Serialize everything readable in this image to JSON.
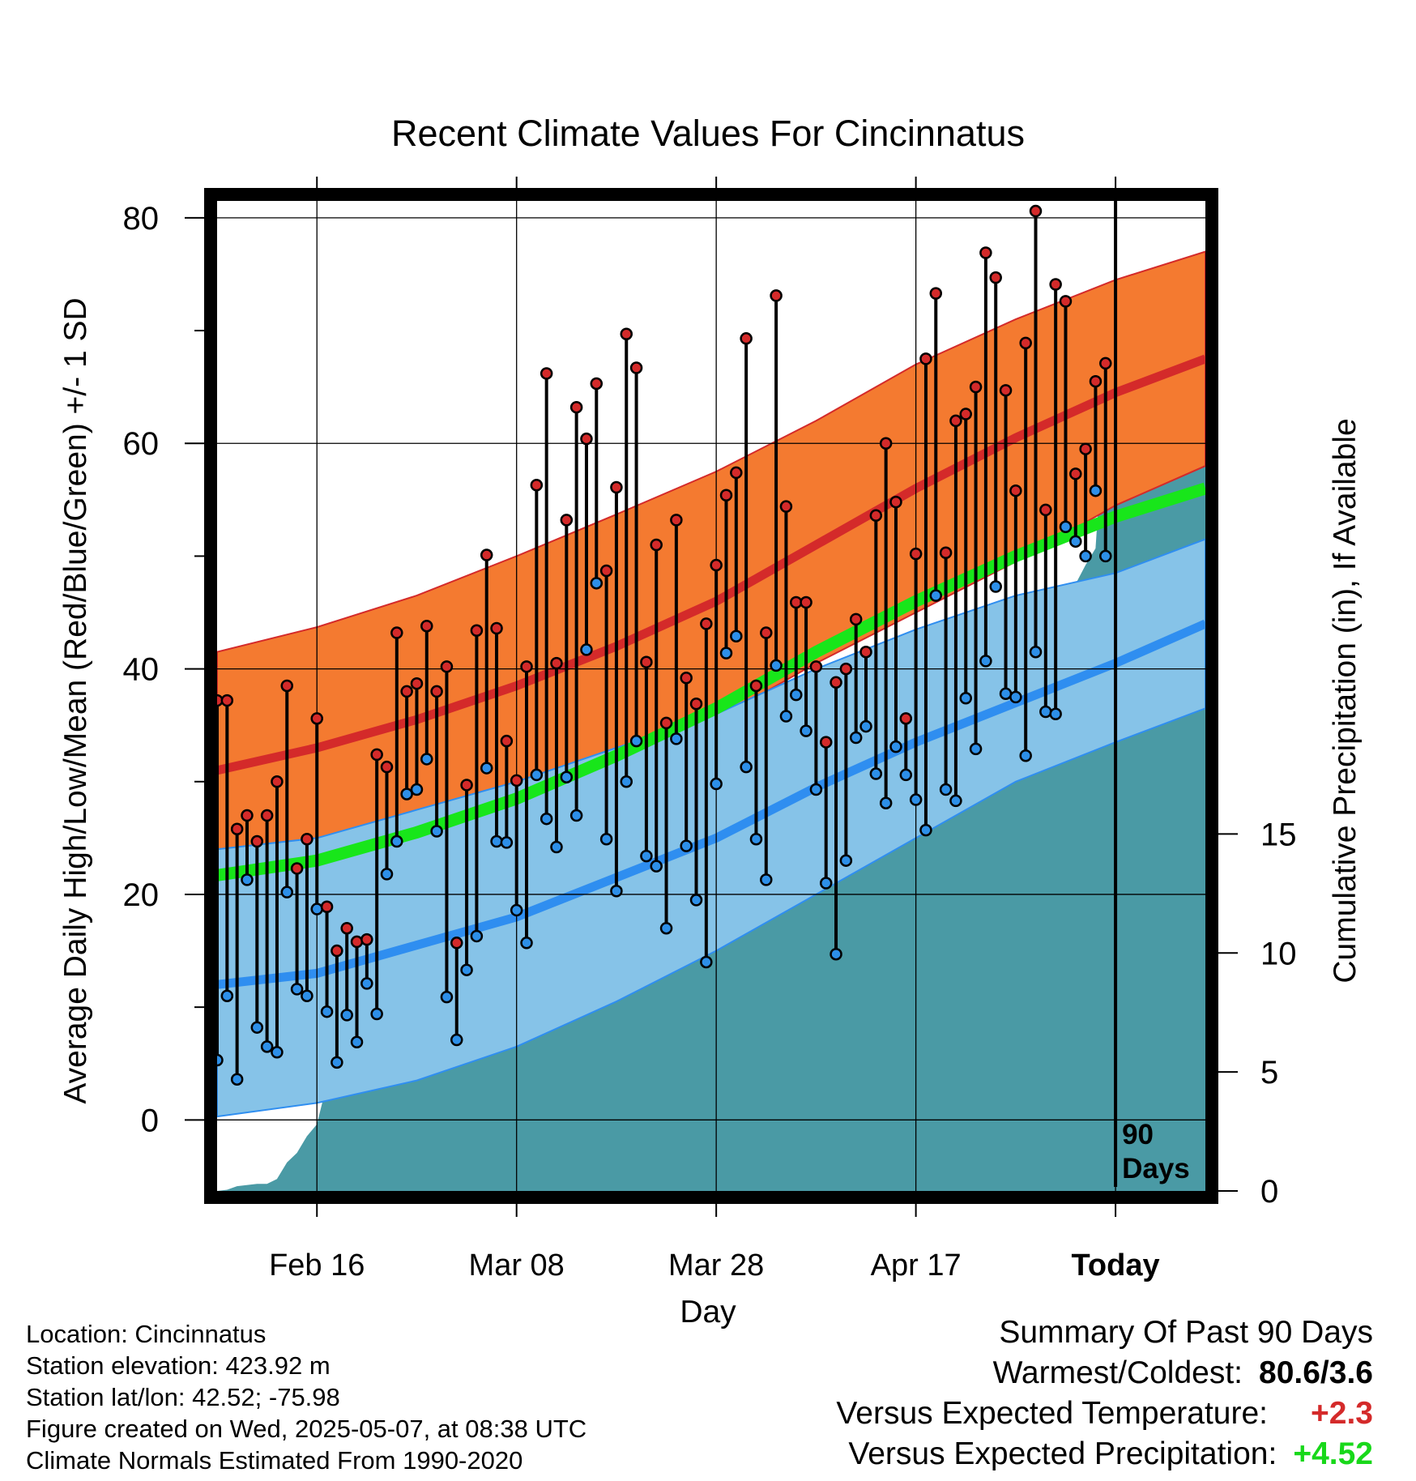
{
  "chart_data": {
    "type": "line",
    "title": "Recent Climate Values For Cincinnatus",
    "xlabel": "Day",
    "ylabel": "Average Daily High/Low/Mean (Red/Blue/Green) +/- 1 SD",
    "y2label": "Cumulative Precipitation (in), If Available",
    "ylim": [
      -6.3,
      81.5
    ],
    "y_ticks": [
      "0",
      "20",
      "40",
      "60",
      "80"
    ],
    "y2lim": [
      0,
      41.6
    ],
    "y2_ticks": [
      "0",
      "5",
      "10",
      "15"
    ],
    "x_tick_labels": [
      "Feb 16",
      "Mar 08",
      "Mar 28",
      "Apr 17",
      "Today"
    ],
    "x_tick_days": [
      -80,
      -60,
      -40,
      -20,
      0
    ],
    "xlim": [
      -90,
      9
    ],
    "grid": true,
    "today_marker_label": [
      "90",
      "Days"
    ],
    "colors": {
      "high_band": "#f47a30",
      "high_mean": "#d42a2a",
      "low_band": "#86c3e8",
      "low_mean": "#2f8ef0",
      "mean": "#18e61a",
      "precip": "#4a9aa5",
      "high_marker": "#d42a2a",
      "low_marker": "#2d8fe8"
    },
    "normals_days": [
      -90,
      -80,
      -70,
      -60,
      -50,
      -40,
      -30,
      -20,
      -10,
      0,
      9
    ],
    "normal_high_mean": [
      31.0,
      33.0,
      35.5,
      38.5,
      42.0,
      46.0,
      51.0,
      56.0,
      60.5,
      64.5,
      67.5
    ],
    "normal_high_sd_upper": [
      41.5,
      43.7,
      46.5,
      50.0,
      53.7,
      57.5,
      62.0,
      67.0,
      71.0,
      74.5,
      77.0
    ],
    "normal_high_sd_lower": [
      20.5,
      22.5,
      25.0,
      28.0,
      31.5,
      35.5,
      40.5,
      45.0,
      49.5,
      54.5,
      58.0
    ],
    "normal_mean": [
      21.7,
      23.0,
      25.5,
      28.5,
      32.3,
      36.5,
      41.5,
      46.0,
      50.0,
      53.5,
      56.0
    ],
    "normal_low_mean": [
      12.0,
      13.0,
      15.5,
      18.0,
      21.5,
      25.0,
      29.5,
      33.5,
      37.0,
      40.5,
      44.0
    ],
    "normal_low_sd_upper": [
      24.0,
      25.0,
      27.5,
      30.0,
      33.0,
      36.0,
      40.0,
      43.5,
      46.5,
      48.5,
      51.5
    ],
    "normal_low_sd_lower": [
      0.3,
      1.5,
      3.5,
      6.5,
      10.5,
      15.0,
      20.0,
      25.0,
      30.0,
      33.5,
      36.5
    ],
    "days": [
      -90,
      -89,
      -88,
      -87,
      -86,
      -85,
      -84,
      -83,
      -82,
      -81,
      -80,
      -79,
      -78,
      -77,
      -76,
      -75,
      -74,
      -73,
      -72,
      -71,
      -70,
      -69,
      -68,
      -67,
      -66,
      -65,
      -64,
      -63,
      -62,
      -61,
      -60,
      -59,
      -58,
      -57,
      -56,
      -55,
      -54,
      -53,
      -52,
      -51,
      -50,
      -49,
      -48,
      -47,
      -46,
      -45,
      -44,
      -43,
      -42,
      -41,
      -40,
      -39,
      -38,
      -37,
      -36,
      -35,
      -34,
      -33,
      -32,
      -31,
      -30,
      -29,
      -28,
      -27,
      -26,
      -25,
      -24,
      -23,
      -22,
      -21,
      -20,
      -19,
      -18,
      -17,
      -16,
      -15,
      -14,
      -13,
      -12,
      -11,
      -10,
      -9,
      -8,
      -7,
      -6,
      -5,
      -4,
      -3,
      -2,
      -1
    ],
    "highs": [
      37.2,
      37.2,
      25.8,
      27.0,
      24.7,
      27.0,
      30.0,
      38.5,
      22.3,
      24.9,
      35.6,
      18.9,
      15.0,
      17.0,
      15.8,
      16.0,
      32.4,
      31.3,
      43.2,
      38.0,
      38.7,
      43.8,
      38.0,
      40.2,
      15.7,
      29.7,
      43.4,
      50.1,
      43.6,
      33.6,
      30.1,
      40.2,
      56.3,
      66.2,
      40.5,
      53.2,
      63.2,
      60.4,
      65.3,
      48.7,
      56.1,
      69.7,
      66.7,
      40.6,
      51.0,
      35.2,
      53.2,
      39.2,
      36.9,
      44.0,
      49.2,
      55.4,
      57.4,
      69.3,
      38.5,
      43.2,
      73.1,
      54.4,
      45.9,
      45.9,
      40.2,
      33.5,
      38.8,
      40.0,
      44.4,
      41.5,
      53.6,
      60.0,
      54.8,
      35.6,
      50.2,
      67.5,
      73.3,
      50.3,
      62.0,
      62.6,
      65.0,
      76.9,
      74.7,
      64.7,
      55.8,
      68.9,
      80.6,
      54.1,
      74.1,
      72.6,
      57.3,
      59.5,
      65.5,
      67.1
    ],
    "lows": [
      5.3,
      11.0,
      3.6,
      21.3,
      8.2,
      6.5,
      6.0,
      20.2,
      11.6,
      11.0,
      18.7,
      9.6,
      5.1,
      9.3,
      6.9,
      12.1,
      9.4,
      21.8,
      24.7,
      28.9,
      29.3,
      32.0,
      25.6,
      10.9,
      7.1,
      13.3,
      16.3,
      31.2,
      24.7,
      24.6,
      18.6,
      15.7,
      30.6,
      26.7,
      24.2,
      30.4,
      27.0,
      41.7,
      47.6,
      24.9,
      20.3,
      30.0,
      33.6,
      23.4,
      22.5,
      17.0,
      33.8,
      24.3,
      19.5,
      14.0,
      29.8,
      41.4,
      42.9,
      31.3,
      24.9,
      21.3,
      40.3,
      35.8,
      37.7,
      34.5,
      29.3,
      21.0,
      14.7,
      23.0,
      33.9,
      34.9,
      30.7,
      28.1,
      33.1,
      30.6,
      28.4,
      25.7,
      46.5,
      29.3,
      28.3,
      37.4,
      32.9,
      40.7,
      47.3,
      37.8,
      37.5,
      32.3,
      41.5,
      36.2,
      36.0,
      52.6,
      51.3,
      50.0,
      55.8,
      50.0
    ],
    "precip_days": [
      -90,
      -89,
      -88,
      -86,
      -85,
      -84,
      -83,
      -82,
      -81,
      -80,
      -79,
      -77,
      -76,
      -74,
      -72,
      -70,
      -69,
      -68,
      -67,
      -66,
      -65,
      -63,
      -62,
      -61,
      -59,
      -55,
      -54,
      -53,
      -51,
      -49,
      -48,
      -46,
      -45,
      -44,
      -42,
      -41,
      -40,
      -39,
      -38,
      -36,
      -35,
      -34,
      -32,
      -30,
      -29,
      -27,
      -26,
      -25,
      -24,
      -23,
      -22,
      -21,
      -19,
      -18,
      -16,
      -14,
      -13,
      -12,
      -10,
      -9,
      -8,
      -7,
      -6,
      -5,
      -4,
      -3,
      -2,
      -1,
      9
    ],
    "precip_cum": [
      0,
      0.05,
      0.2,
      0.3,
      0.3,
      0.5,
      1.2,
      1.6,
      2.3,
      2.8,
      4.5,
      4.5,
      4.7,
      5.0,
      5.2,
      5.2,
      5.5,
      6.2,
      6.3,
      7.1,
      8.3,
      8.3,
      8.4,
      9.5,
      9.8,
      9.8,
      9.8,
      9.8,
      10.1,
      10.2,
      10.4,
      10.4,
      10.5,
      10.5,
      10.6,
      10.8,
      11.0,
      11.5,
      11.6,
      11.6,
      11.9,
      12.2,
      12.4,
      13.1,
      13.3,
      13.8,
      14.0,
      14.5,
      14.8,
      15.1,
      15.1,
      15.6,
      15.6,
      16.2,
      16.3,
      16.6,
      17.2,
      17.3,
      18.3,
      20.3,
      20.8,
      22.2,
      23.8,
      25.5,
      25.5,
      26.3,
      27.0,
      33.3,
      33.3
    ]
  },
  "footer": {
    "location": "Location: Cincinnatus",
    "elevation": "Station elevation: 423.92 m",
    "latlon": "Station lat/lon: 42.52; -75.98",
    "created": "Figure created on Wed, 2025-05-07, at 08:38 UTC",
    "normals": "Climate Normals Estimated From 1990-2020"
  },
  "summary": {
    "title": "Summary Of Past 90 Days",
    "warmest_label": "Warmest/Coldest:",
    "warmest_value": "80.6/3.6",
    "temp_label": "Versus Expected Temperature:",
    "temp_value": "+2.3",
    "temp_color": "#d42a2a",
    "precip_label": "Versus Expected Precipitation:",
    "precip_value": "+4.52",
    "precip_color": "#18d81a"
  }
}
